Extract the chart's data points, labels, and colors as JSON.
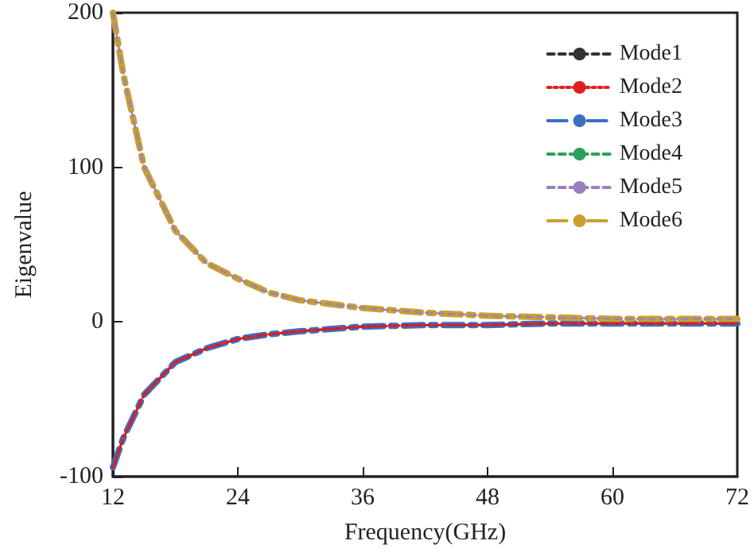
{
  "chart_data": {
    "type": "line",
    "xlabel": "Frequency(GHz)",
    "ylabel": "Eigenvalue",
    "x": [
      12,
      13,
      15,
      18,
      21,
      24,
      27,
      30,
      36,
      42,
      48,
      54,
      60,
      66,
      72
    ],
    "series": [
      {
        "name": "Mode1",
        "color": "#333333",
        "line_style": "dashed",
        "values": [
          -94,
          -75,
          -47,
          -26,
          -17,
          -11,
          -8,
          -6,
          -3,
          -2,
          -2,
          -1,
          -1,
          -1,
          -1
        ]
      },
      {
        "name": "Mode2",
        "color": "#e02020",
        "line_style": "dotted",
        "values": [
          -94,
          -75,
          -47,
          -26,
          -17,
          -11,
          -8,
          -6,
          -3,
          -2,
          -2,
          -1,
          -1,
          -1,
          -1
        ]
      },
      {
        "name": "Mode3",
        "color": "#3a6fc4",
        "line_style": "dashdot",
        "values": [
          -94,
          -75,
          -47,
          -26,
          -17,
          -11,
          -8,
          -6,
          -3,
          -2,
          -2,
          -1,
          -1,
          -1,
          -1
        ]
      },
      {
        "name": "Mode4",
        "color": "#2ca05a",
        "line_style": "dashed",
        "values": [
          null,
          null,
          null,
          null,
          null,
          null,
          null,
          null,
          null,
          null,
          null,
          null,
          null,
          null,
          null
        ]
      },
      {
        "name": "Mode5",
        "color": "#9a7fc0",
        "line_style": "dashed",
        "values": [
          200,
          160,
          100,
          59,
          38,
          28,
          19,
          14,
          9,
          6,
          4,
          3,
          2,
          2,
          2
        ]
      },
      {
        "name": "Mode6",
        "color": "#c9a030",
        "line_style": "dashdot",
        "values": [
          200,
          160,
          100,
          59,
          38,
          28,
          19,
          14,
          9,
          6,
          4,
          3,
          2,
          2,
          2
        ]
      }
    ],
    "xlim": [
      12,
      72
    ],
    "xticks": [
      12,
      24,
      36,
      48,
      60,
      72
    ],
    "ylim": [
      -100,
      200
    ],
    "yticks": [
      -100,
      0,
      100,
      200
    ],
    "grid": false,
    "legend": "top right",
    "marker": "none"
  }
}
